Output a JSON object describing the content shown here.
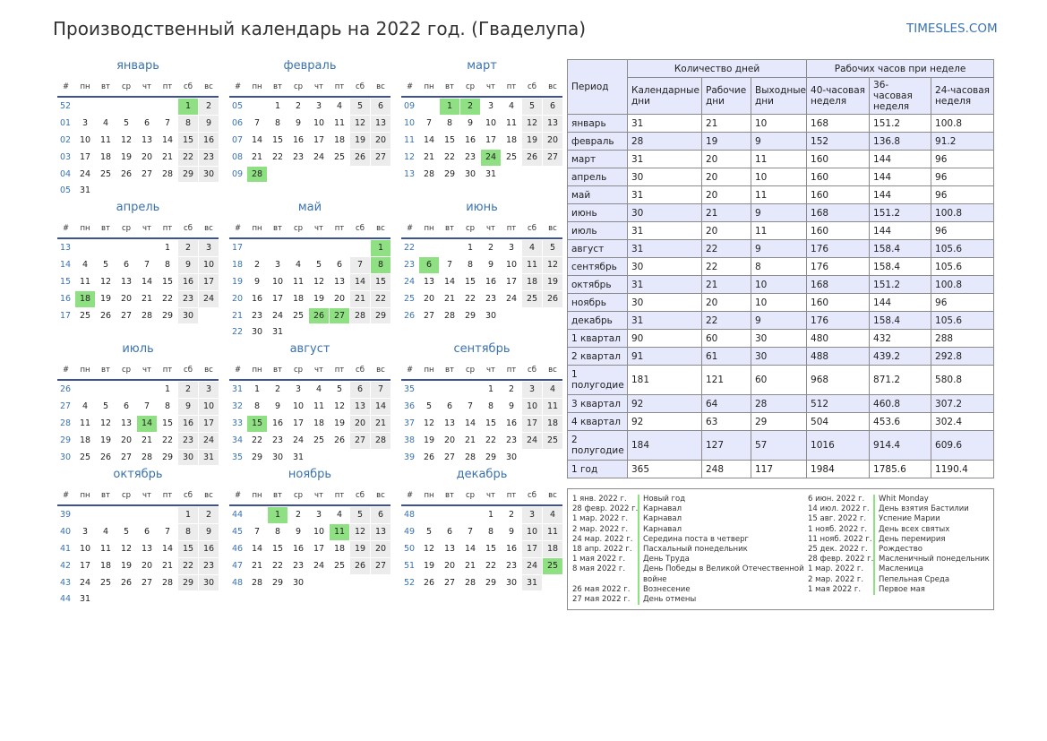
{
  "title": "Производственный календарь на 2022 год. (Гваделупа)",
  "site": "TIMESLES.COM",
  "colors": {
    "weekend": "#ececec",
    "holiday": "#8fe082",
    "accent": "#3a72b0",
    "rule": "#3d5290",
    "table_header": "#e6e8fb"
  },
  "day_headers": [
    "#",
    "пн",
    "вт",
    "ср",
    "чт",
    "пт",
    "сб",
    "вс"
  ],
  "months": [
    {
      "name": "январь",
      "offset": 5,
      "days": 31,
      "first_week": "52",
      "weeks": [
        "52",
        "01",
        "02",
        "03",
        "04",
        "05"
      ],
      "holidays": [
        1
      ]
    },
    {
      "name": "февраль",
      "offset": 1,
      "days": 28,
      "first_week": "05",
      "weeks": [
        "05",
        "06",
        "07",
        "08",
        "09"
      ],
      "holidays": [
        28
      ]
    },
    {
      "name": "март",
      "offset": 1,
      "days": 31,
      "first_week": "09",
      "weeks": [
        "09",
        "10",
        "11",
        "12",
        "13"
      ],
      "holidays": [
        1,
        2,
        24
      ]
    },
    {
      "name": "апрель",
      "offset": 4,
      "days": 30,
      "first_week": "13",
      "weeks": [
        "13",
        "14",
        "15",
        "16",
        "17"
      ],
      "holidays": [
        18
      ]
    },
    {
      "name": "май",
      "offset": 6,
      "days": 31,
      "first_week": "17",
      "weeks": [
        "17",
        "18",
        "19",
        "20",
        "21",
        "22"
      ],
      "holidays": [
        1,
        8,
        26,
        27
      ]
    },
    {
      "name": "июнь",
      "offset": 2,
      "days": 30,
      "first_week": "22",
      "weeks": [
        "22",
        "23",
        "24",
        "25",
        "26"
      ],
      "holidays": [
        6
      ]
    },
    {
      "name": "июль",
      "offset": 4,
      "days": 31,
      "first_week": "26",
      "weeks": [
        "26",
        "27",
        "28",
        "29",
        "30"
      ],
      "holidays": [
        14
      ]
    },
    {
      "name": "август",
      "offset": 0,
      "days": 31,
      "first_week": "31",
      "weeks": [
        "31",
        "32",
        "33",
        "34",
        "35"
      ],
      "holidays": [
        15
      ]
    },
    {
      "name": "сентябрь",
      "offset": 3,
      "days": 30,
      "first_week": "35",
      "weeks": [
        "35",
        "36",
        "37",
        "38",
        "39"
      ],
      "holidays": []
    },
    {
      "name": "октябрь",
      "offset": 5,
      "days": 31,
      "first_week": "39",
      "weeks": [
        "39",
        "40",
        "41",
        "42",
        "43",
        "44"
      ],
      "holidays": []
    },
    {
      "name": "ноябрь",
      "offset": 1,
      "days": 30,
      "first_week": "44",
      "weeks": [
        "44",
        "45",
        "46",
        "47",
        "48"
      ],
      "holidays": [
        1,
        11
      ]
    },
    {
      "name": "декабрь",
      "offset": 3,
      "days": 31,
      "first_week": "48",
      "weeks": [
        "48",
        "49",
        "50",
        "51",
        "52"
      ],
      "holidays": [
        25
      ]
    }
  ],
  "table": {
    "period_header": "Период",
    "group_days": "Количество дней",
    "group_hours": "Рабочих часов при неделе",
    "columns": [
      "Календарные дни",
      "Рабочие дни",
      "Выходные дни",
      "40-часовая неделя",
      "36-часовая неделя",
      "24-часовая неделя"
    ],
    "rows": [
      {
        "period": "январь",
        "cells": [
          "31",
          "21",
          "10",
          "168",
          "151.2",
          "100.8"
        ]
      },
      {
        "period": "февраль",
        "cells": [
          "28",
          "19",
          "9",
          "152",
          "136.8",
          "91.2"
        ]
      },
      {
        "period": "март",
        "cells": [
          "31",
          "20",
          "11",
          "160",
          "144",
          "96"
        ]
      },
      {
        "period": "апрель",
        "cells": [
          "30",
          "20",
          "10",
          "160",
          "144",
          "96"
        ]
      },
      {
        "period": "май",
        "cells": [
          "31",
          "20",
          "11",
          "160",
          "144",
          "96"
        ]
      },
      {
        "period": "июнь",
        "cells": [
          "30",
          "21",
          "9",
          "168",
          "151.2",
          "100.8"
        ]
      },
      {
        "period": "июль",
        "cells": [
          "31",
          "20",
          "11",
          "160",
          "144",
          "96"
        ]
      },
      {
        "period": "август",
        "cells": [
          "31",
          "22",
          "9",
          "176",
          "158.4",
          "105.6"
        ]
      },
      {
        "period": "сентябрь",
        "cells": [
          "30",
          "22",
          "8",
          "176",
          "158.4",
          "105.6"
        ]
      },
      {
        "period": "октябрь",
        "cells": [
          "31",
          "21",
          "10",
          "168",
          "151.2",
          "100.8"
        ]
      },
      {
        "period": "ноябрь",
        "cells": [
          "30",
          "20",
          "10",
          "160",
          "144",
          "96"
        ]
      },
      {
        "period": "декабрь",
        "cells": [
          "31",
          "22",
          "9",
          "176",
          "158.4",
          "105.6"
        ]
      },
      {
        "period": "1 квартал",
        "cells": [
          "90",
          "60",
          "30",
          "480",
          "432",
          "288"
        ]
      },
      {
        "period": "2 квартал",
        "cells": [
          "91",
          "61",
          "30",
          "488",
          "439.2",
          "292.8"
        ]
      },
      {
        "period": "1 полугодие",
        "cells": [
          "181",
          "121",
          "60",
          "968",
          "871.2",
          "580.8"
        ]
      },
      {
        "period": "3 квартал",
        "cells": [
          "92",
          "64",
          "28",
          "512",
          "460.8",
          "307.2"
        ]
      },
      {
        "period": "4 квартал",
        "cells": [
          "92",
          "63",
          "29",
          "504",
          "453.6",
          "302.4"
        ]
      },
      {
        "period": "2 полугодие",
        "cells": [
          "184",
          "127",
          "57",
          "1016",
          "914.4",
          "609.6"
        ]
      },
      {
        "period": "1 год",
        "cells": [
          "365",
          "248",
          "117",
          "1984",
          "1785.6",
          "1190.4"
        ]
      }
    ]
  },
  "holidays_left": [
    {
      "date": "1 янв. 2022 г.",
      "name": "Новый год"
    },
    {
      "date": "28 февр. 2022 г.",
      "name": "Карнавал"
    },
    {
      "date": "1 мар. 2022 г.",
      "name": "Карнавал"
    },
    {
      "date": "2 мар. 2022 г.",
      "name": "Карнавал"
    },
    {
      "date": "24 мар. 2022 г.",
      "name": "Середина поста в четверг"
    },
    {
      "date": "18 апр. 2022 г.",
      "name": "Пасхальный понедельник"
    },
    {
      "date": "1 мая 2022 г.",
      "name": "День Труда"
    },
    {
      "date": "8 мая 2022 г.",
      "name": "День Победы в Великой Отечественной войне"
    },
    {
      "date": "26 мая 2022 г.",
      "name": "Вознесение"
    },
    {
      "date": "27 мая 2022 г.",
      "name": "День отмены"
    }
  ],
  "holidays_right": [
    {
      "date": "6 июн. 2022 г.",
      "name": "Whit Monday"
    },
    {
      "date": "14 июл. 2022 г.",
      "name": "День взятия Бастилии"
    },
    {
      "date": "15 авг. 2022 г.",
      "name": "Успение Марии"
    },
    {
      "date": "1 нояб. 2022 г.",
      "name": "День всех святых"
    },
    {
      "date": "11 нояб. 2022 г.",
      "name": "День перемирия"
    },
    {
      "date": "25 дек. 2022 г.",
      "name": "Рождество"
    },
    {
      "date": "28 февр. 2022 г.",
      "name": "Масленичный понедельник"
    },
    {
      "date": "1 мар. 2022 г.",
      "name": "Масленица"
    },
    {
      "date": "2 мар. 2022 г.",
      "name": "Пепельная Среда"
    },
    {
      "date": "1 мая 2022 г.",
      "name": "Первое мая"
    }
  ]
}
